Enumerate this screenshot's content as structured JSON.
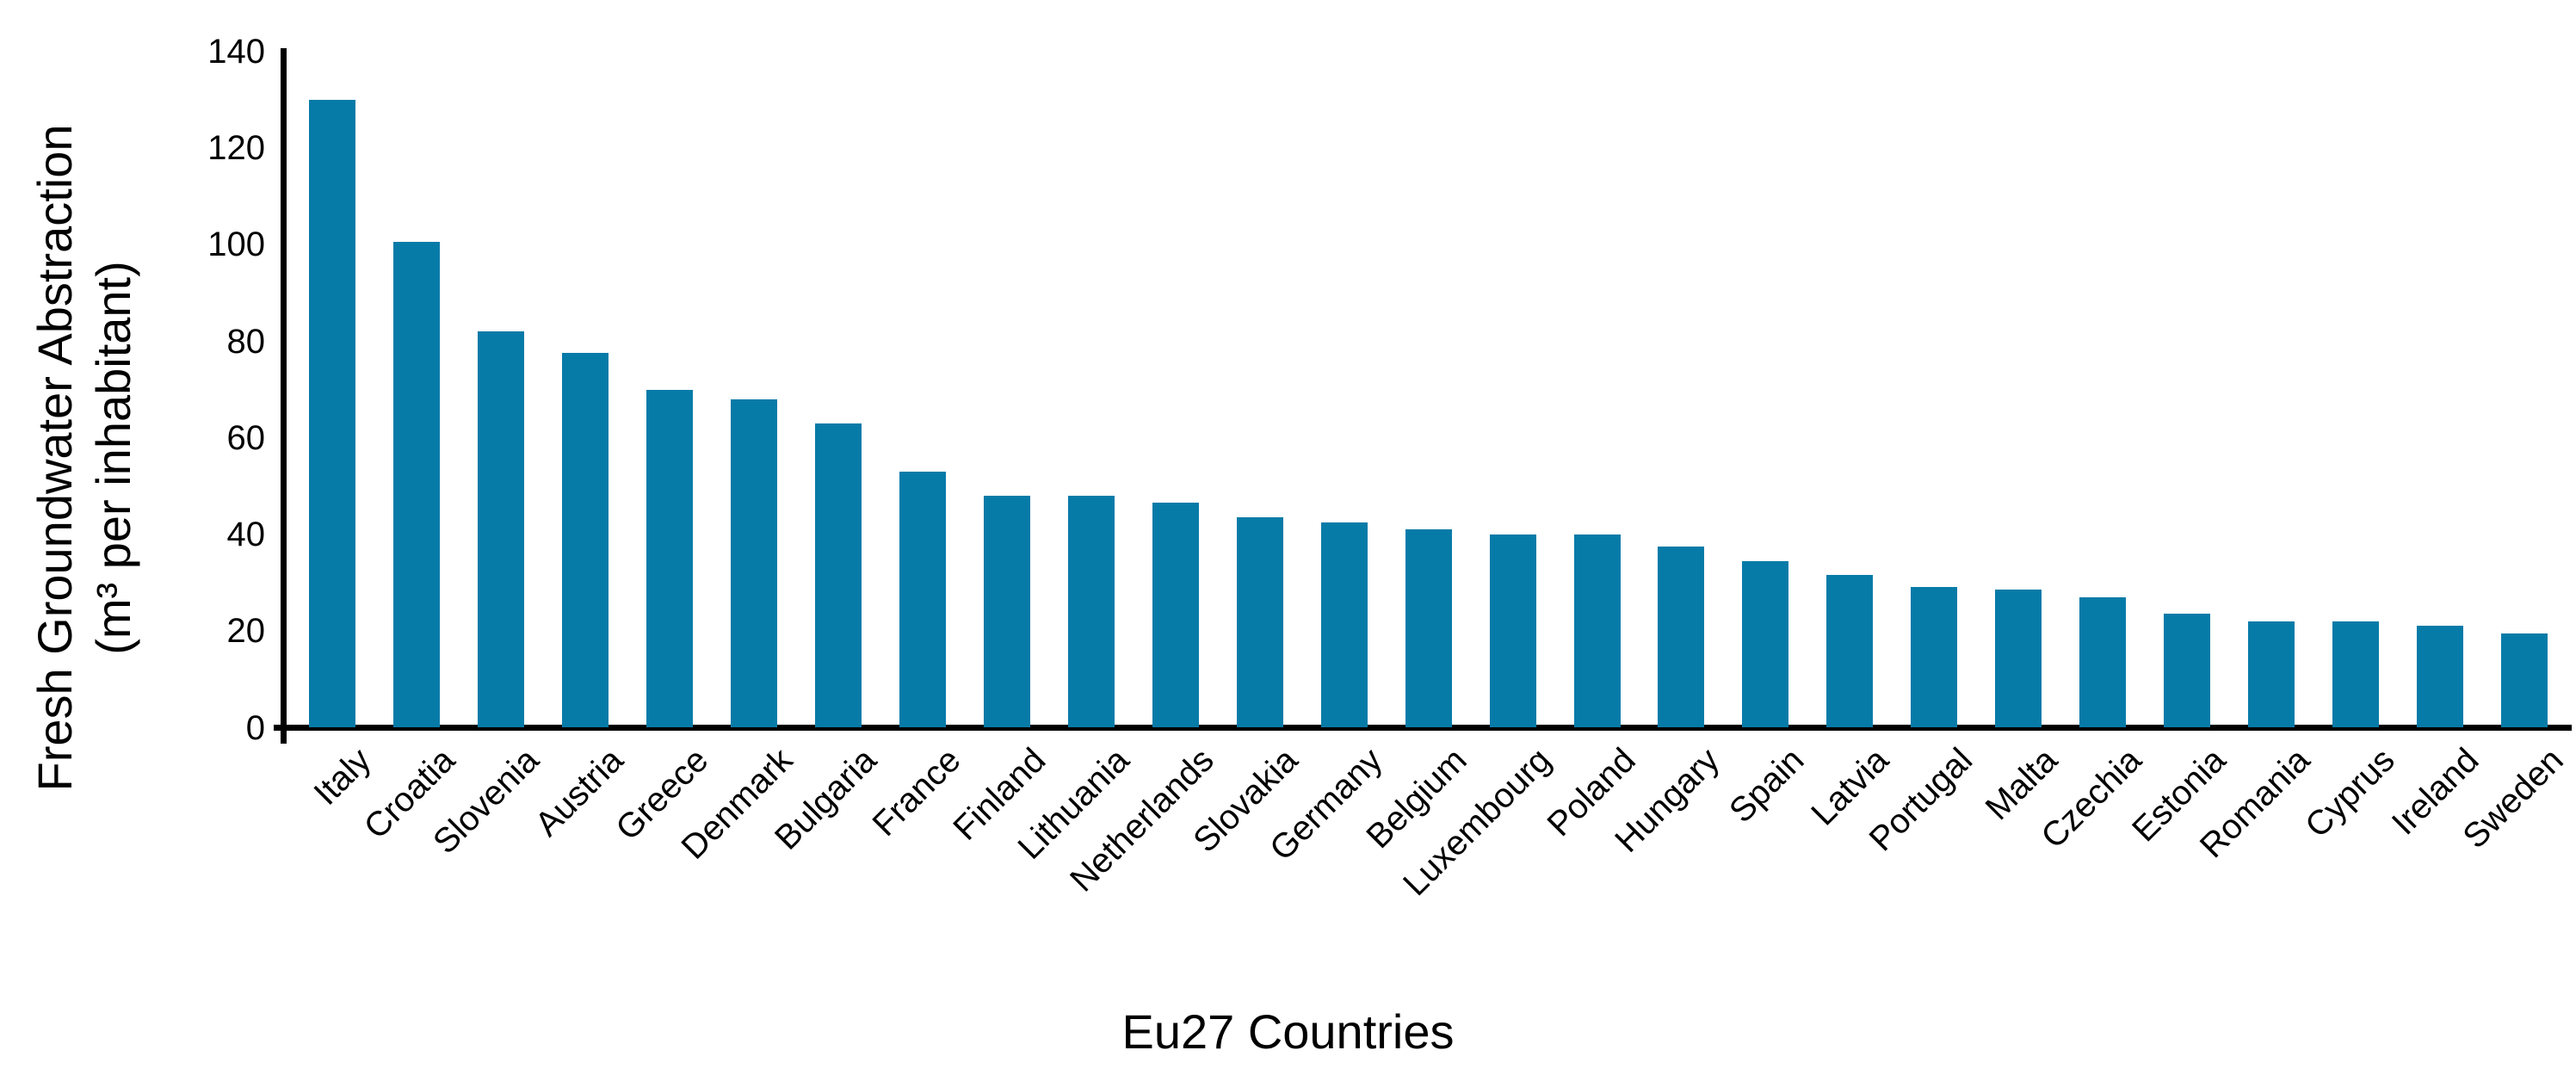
{
  "chart_data": {
    "type": "bar",
    "title": "",
    "xlabel": "Eu27 Countries",
    "ylabel_line1": "Fresh Groundwater Abstraction",
    "ylabel_line2": "(m³ per inhabitant)",
    "categories": [
      "Italy",
      "Croatia",
      "Slovenia",
      "Austria",
      "Greece",
      "Denmark",
      "Bulgaria",
      "France",
      "Finland",
      "Lithuania",
      "Netherlands",
      "Slovakia",
      "Germany",
      "Belgium",
      "Luxembourg",
      "Poland",
      "Hungary",
      "Spain",
      "Latvia",
      "Portugal",
      "Malta",
      "Czechia",
      "Estonia",
      "Romania",
      "Cyprus",
      "Ireland",
      "Sweden"
    ],
    "values": [
      130,
      100.5,
      82,
      77.5,
      70,
      68,
      63,
      53,
      48,
      48,
      46.5,
      43.5,
      42.5,
      41,
      40,
      40,
      37.5,
      34.5,
      31.5,
      29,
      28.5,
      27,
      23.5,
      22,
      22,
      21,
      19.5
    ],
    "yticks": [
      0,
      20,
      40,
      60,
      80,
      100,
      120,
      140
    ],
    "ylim": [
      0,
      140
    ],
    "grid": false,
    "legend": "none",
    "bar_color": "#077BA8",
    "axis_color": "#000000",
    "text_color": "#000000"
  }
}
